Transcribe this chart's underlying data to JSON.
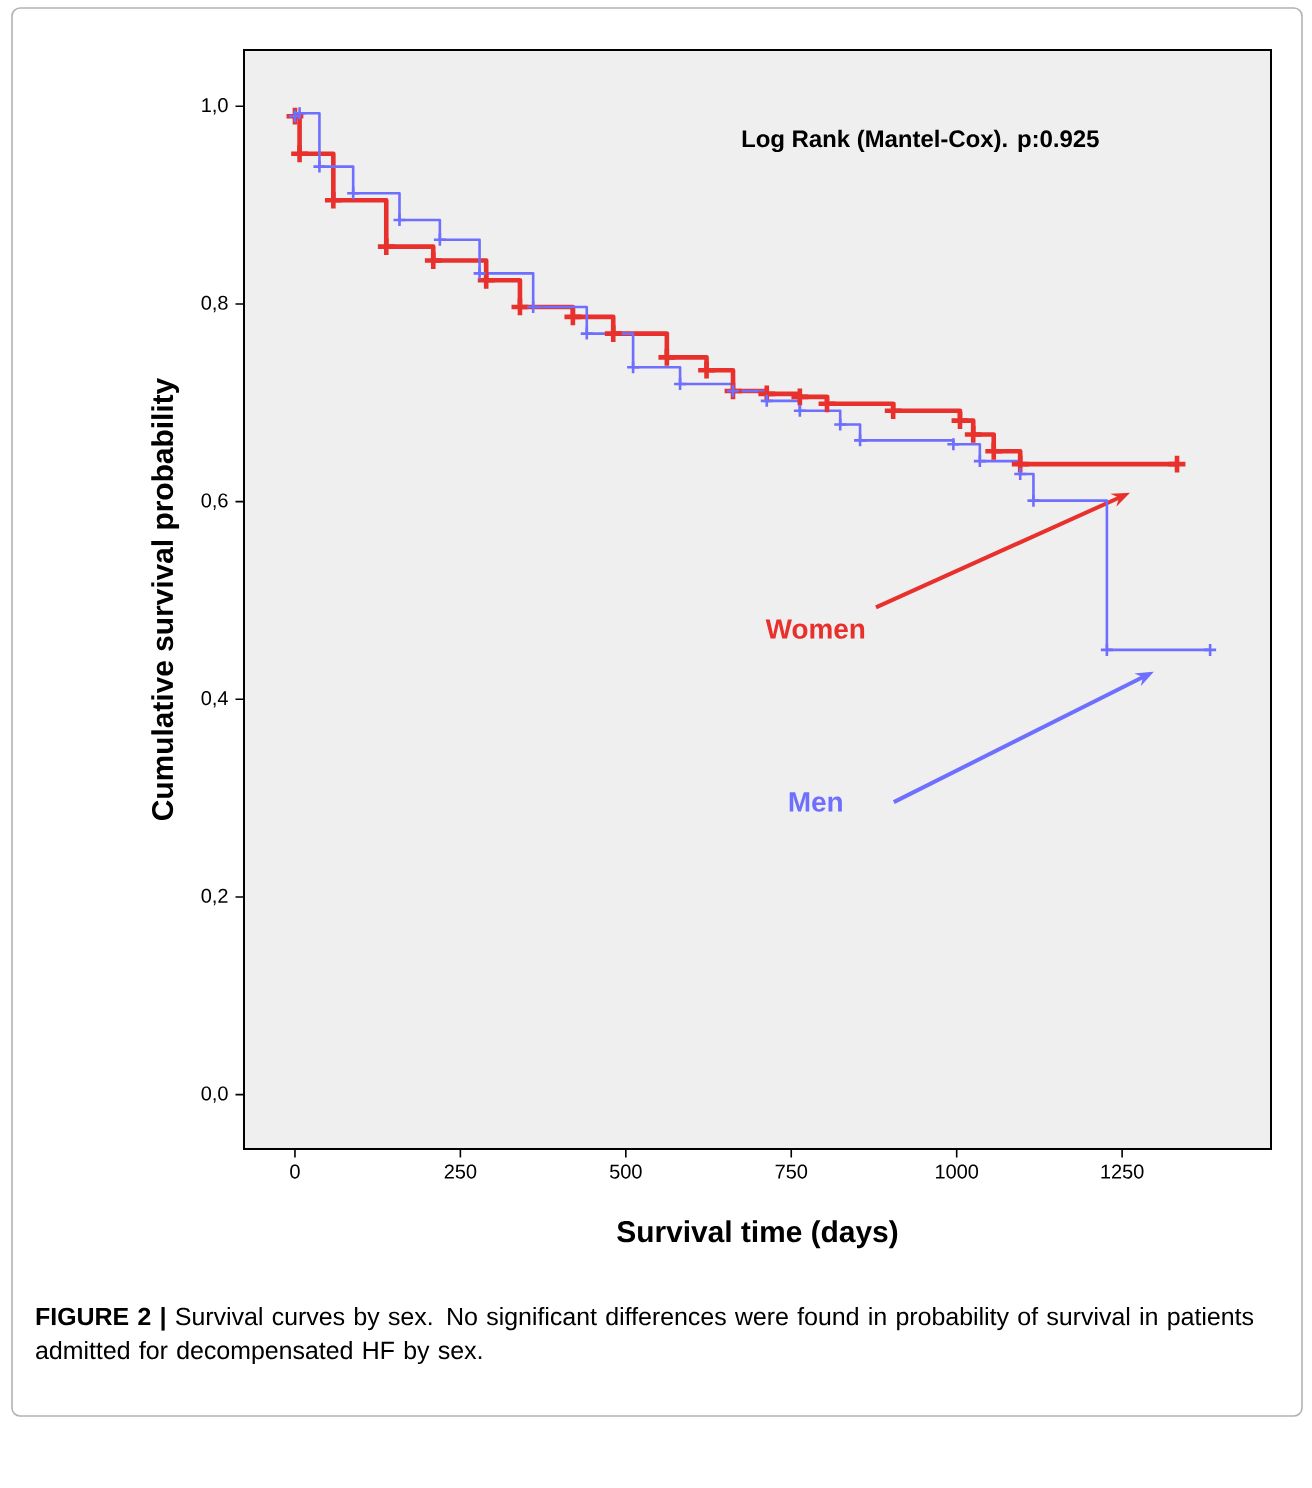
{
  "chart_data": {
    "type": "step",
    "xlabel": "Survival time (days)",
    "ylabel": "Cumulative survival probability",
    "annotations": [
      "Log Rank (Mantel-Cox). p:0.925",
      "**FIGURE 2 |** Survival curves by sex. No significant differences were found in probability of survival in patients admitted for decompensated HF by sex."
    ],
    "xlim": [
      -77,
      1475
    ],
    "ylim": [
      -0.055,
      1.057
    ],
    "xticks": [
      0,
      250,
      500,
      750,
      1000,
      1250
    ],
    "yticks": [
      {
        "value": 0,
        "label": "0,0"
      },
      {
        "value": 0.2,
        "label": "0,2"
      },
      {
        "value": 0.4,
        "label": "0,4"
      },
      {
        "value": 0.6,
        "label": "0,6"
      },
      {
        "value": 0.8,
        "label": "0,8"
      },
      {
        "value": 1.0,
        "label": "1,0"
      }
    ],
    "grid": false,
    "legend": false,
    "marker": "cross",
    "series": [
      {
        "name": "Women",
        "color": "#e8302c",
        "x": [
          0,
          7,
          58,
          138,
          209,
          289,
          340,
          420,
          481,
          562,
          622,
          662,
          713,
          763,
          804,
          904,
          1005,
          1025,
          1056,
          1096,
          1333
        ],
        "values": [
          0.99,
          0.952,
          0.905,
          0.858,
          0.844,
          0.824,
          0.797,
          0.787,
          0.77,
          0.746,
          0.733,
          0.712,
          0.709,
          0.706,
          0.699,
          0.692,
          0.682,
          0.668,
          0.651,
          0.638,
          0.638
        ]
      },
      {
        "name": "Men",
        "color": "#6f6fff",
        "x": [
          0,
          7,
          37,
          88,
          158,
          219,
          279,
          360,
          441,
          511,
          582,
          662,
          713,
          763,
          824,
          854,
          995,
          1035,
          1096,
          1116,
          1227,
          1383
        ],
        "values": [
          0.99,
          0.993,
          0.939,
          0.912,
          0.885,
          0.865,
          0.831,
          0.797,
          0.77,
          0.736,
          0.719,
          0.712,
          0.702,
          0.692,
          0.678,
          0.662,
          0.658,
          0.641,
          0.628,
          0.601,
          0.45,
          0.45
        ]
      }
    ]
  }
}
